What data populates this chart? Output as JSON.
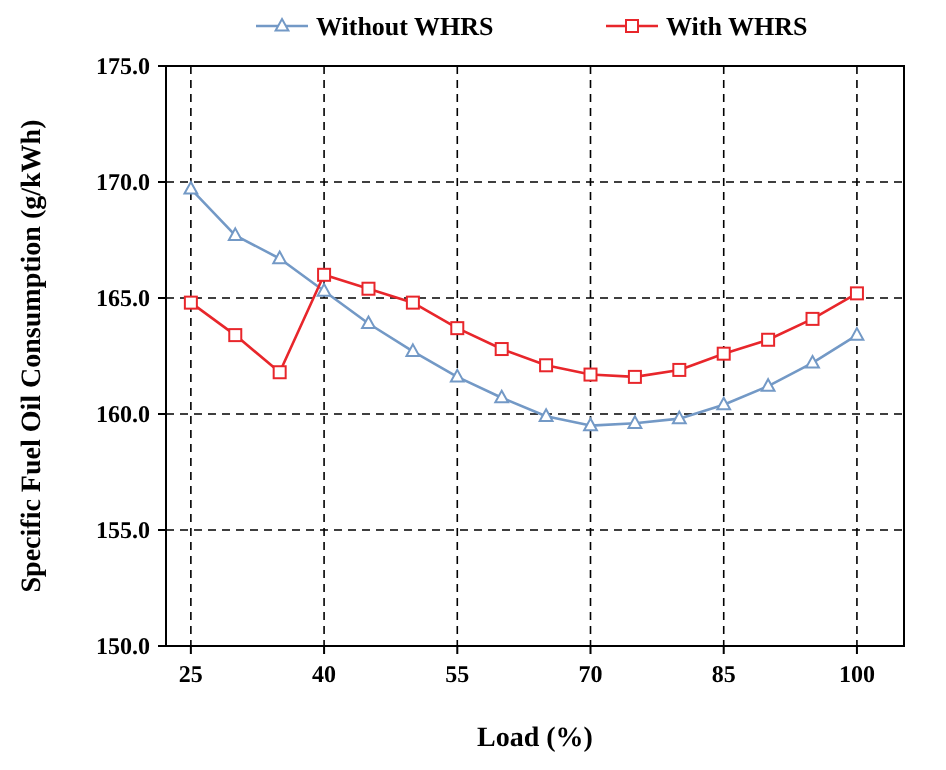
{
  "chart_data": {
    "type": "line",
    "xlabel": "Load (%)",
    "ylabel": "Specific Fuel Oil Consumption (g/kWh)",
    "x": [
      25,
      30,
      35,
      40,
      45,
      50,
      55,
      60,
      65,
      70,
      75,
      80,
      85,
      90,
      95,
      100
    ],
    "series": [
      {
        "name": "Without WHRS",
        "color": "#7399c6",
        "marker": "triangle",
        "values": [
          169.7,
          167.7,
          166.7,
          165.3,
          163.9,
          162.7,
          161.6,
          160.7,
          159.9,
          159.5,
          159.6,
          159.8,
          160.4,
          161.2,
          162.2,
          163.4
        ]
      },
      {
        "name": "With WHRS",
        "color": "#e8262b",
        "marker": "square",
        "values": [
          164.8,
          163.4,
          161.8,
          166.0,
          165.4,
          164.8,
          163.7,
          162.8,
          162.1,
          161.7,
          161.6,
          161.9,
          162.6,
          163.2,
          164.1,
          165.2
        ]
      }
    ],
    "xlim": [
      22.2,
      105.3
    ],
    "xticks": [
      25,
      40,
      55,
      70,
      85,
      100
    ],
    "ylim": [
      150,
      175
    ],
    "yticks": [
      {
        "value": 150,
        "label": "150.0"
      },
      {
        "value": 155,
        "label": "155.0"
      },
      {
        "value": 160,
        "label": "160.0"
      },
      {
        "value": 165,
        "label": "165.0"
      },
      {
        "value": 170,
        "label": "170.0"
      },
      {
        "value": 175,
        "label": "175.0"
      }
    ],
    "grid": true,
    "legend": "top",
    "line_style": "solid"
  }
}
